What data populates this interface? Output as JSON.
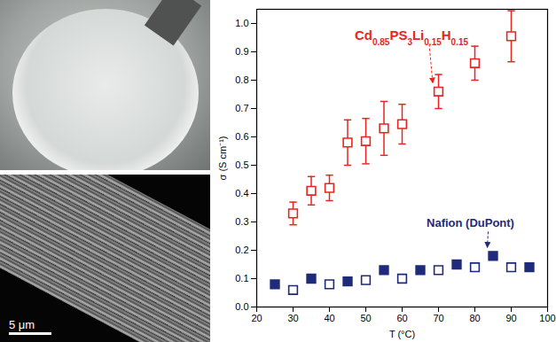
{
  "chart_data": {
    "type": "scatter",
    "xlabel": "T (°C)",
    "ylabel": "σ (S cm⁻¹)",
    "xlim": [
      20,
      100
    ],
    "xticks": [
      20,
      30,
      40,
      50,
      60,
      70,
      80,
      90,
      100
    ],
    "ylim": [
      0,
      1.05
    ],
    "yticks": [
      {
        "value": 0,
        "label": "0.0"
      },
      0.1,
      0.2,
      0.3,
      0.4,
      0.5,
      0.6,
      0.7,
      0.8,
      0.9,
      {
        "value": 1,
        "label": "1.0"
      }
    ],
    "grid": false,
    "series": [
      {
        "name": "Cd0.85PS3Li0.15H0.15",
        "color": "#e8251f",
        "marker": "open square",
        "x": [
          30,
          35,
          40,
          45,
          50,
          55,
          60,
          70,
          80,
          90
        ],
        "values": [
          0.33,
          0.41,
          0.42,
          0.58,
          0.585,
          0.63,
          0.645,
          0.76,
          0.86,
          0.955
        ],
        "errors": [
          0.04,
          0.05,
          0.045,
          0.08,
          0.08,
          0.095,
          0.07,
          0.06,
          0.06,
          0.09
        ]
      },
      {
        "name": "Nafion (DuPont)",
        "color": "#1f2a7a",
        "marker": "filled square",
        "x": [
          25,
          35,
          45,
          55,
          65,
          75,
          85,
          95
        ],
        "values": [
          0.08,
          0.1,
          0.09,
          0.13,
          0.13,
          0.15,
          0.18,
          0.14
        ]
      },
      {
        "name": "Nafion (DuPont)",
        "color": "#1f2a7a",
        "marker": "open square",
        "x": [
          30,
          40,
          50,
          60,
          70,
          80,
          90
        ],
        "values": [
          0.06,
          0.08,
          0.095,
          0.1,
          0.13,
          0.14,
          0.14
        ]
      }
    ]
  },
  "photo_scale_bar": "5 μm"
}
